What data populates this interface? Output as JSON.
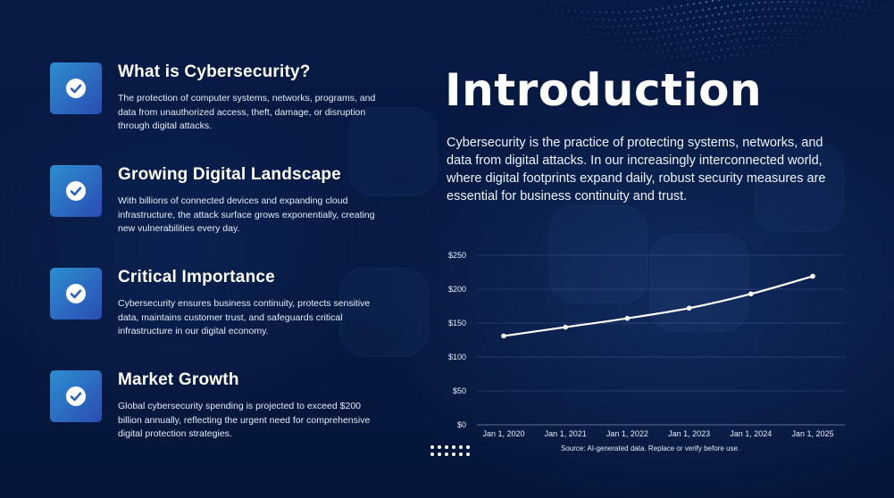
{
  "features": [
    {
      "title": "What is Cybersecurity?",
      "description": "The protection of computer systems, networks, programs, and data from unauthorized access, theft, damage, or disruption through digital attacks.",
      "icon": "check-circle-icon"
    },
    {
      "title": "Growing Digital Landscape",
      "description": "With billions of connected devices and expanding cloud infrastructure, the attack surface grows exponentially, creating new vulnerabilities every day.",
      "icon": "check-circle-icon"
    },
    {
      "title": "Critical Importance",
      "description": "Cybersecurity ensures business continuity, protects sensitive data, maintains customer trust, and safeguards critical infrastructure in our digital economy.",
      "icon": "check-circle-icon"
    },
    {
      "title": "Market Growth",
      "description": "Global cybersecurity spending is projected to exceed $200 billion annually, reflecting the urgent need for comprehensive digital protection strategies.",
      "icon": "check-circle-icon"
    }
  ],
  "intro": {
    "title": "Introduction",
    "text": "Cybersecurity is the practice of protecting systems, networks, and data from digital attacks. In our increasingly interconnected world, where digital footprints expand daily, robust security measures are essential for business continuity and trust."
  },
  "chart_data": {
    "type": "line",
    "x": [
      "Jan 1, 2020",
      "Jan 1, 2021",
      "Jan 1, 2022",
      "Jan 1, 2023",
      "Jan 1, 2024",
      "Jan 1, 2025"
    ],
    "values": [
      131,
      144,
      157,
      172,
      193,
      219
    ],
    "y_ticks": [
      "$0",
      "$50",
      "$100",
      "$150",
      "$200",
      "$250"
    ],
    "ylim": [
      0,
      250
    ],
    "grid": true,
    "line_color": "#ffffff"
  },
  "source_note": "Source: AI-generated data. Replace or verify before use.",
  "colors": {
    "background": "#06173d",
    "icon_gradient_start": "#2c8fd0",
    "icon_gradient_end": "#2b4cb3"
  }
}
